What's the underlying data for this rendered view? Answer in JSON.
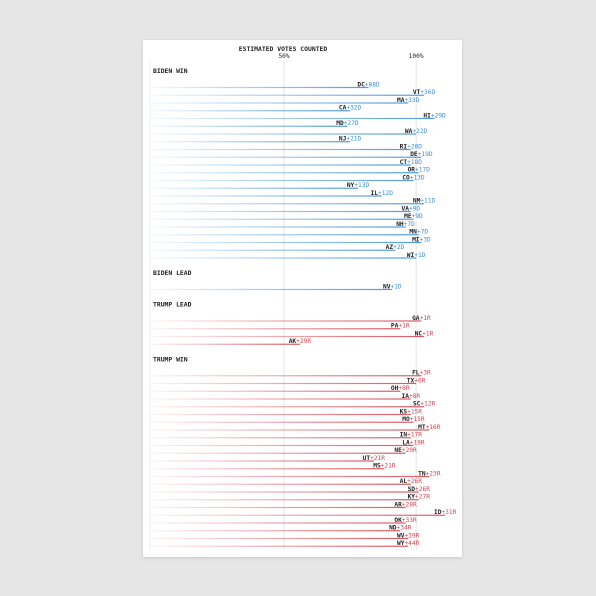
{
  "chart_data": {
    "type": "lollipop",
    "title": "ESTIMATED VOTES COUNTED",
    "xlim": [
      0,
      117
    ],
    "xticks": [
      {
        "value": 50,
        "label": "50%"
      },
      {
        "value": 100,
        "label": "100%"
      }
    ],
    "grid": true,
    "groups": [
      {
        "name": "BIDEN WIN",
        "color": "#3a8fdc",
        "states": [
          {
            "code": "DC",
            "margin": "+88D",
            "counted": 82
          },
          {
            "code": "VT",
            "margin": "+36D",
            "counted": 103
          },
          {
            "code": "MA",
            "margin": "+33D",
            "counted": 97
          },
          {
            "code": "CA",
            "margin": "+32D",
            "counted": 75
          },
          {
            "code": "HI",
            "margin": "+29D",
            "counted": 107
          },
          {
            "code": "MD",
            "margin": "+27D",
            "counted": 74
          },
          {
            "code": "WA",
            "margin": "+22D",
            "counted": 100
          },
          {
            "code": "NJ",
            "margin": "+21D",
            "counted": 75
          },
          {
            "code": "RI",
            "margin": "+20D",
            "counted": 98
          },
          {
            "code": "DE",
            "margin": "+19D",
            "counted": 102
          },
          {
            "code": "CT",
            "margin": "+18D",
            "counted": 98
          },
          {
            "code": "OR",
            "margin": "+17D",
            "counted": 101
          },
          {
            "code": "CO",
            "margin": "+13D",
            "counted": 99
          },
          {
            "code": "NY",
            "margin": "+13D",
            "counted": 78
          },
          {
            "code": "IL",
            "margin": "+12D",
            "counted": 87
          },
          {
            "code": "NM",
            "margin": "+11D",
            "counted": 103
          },
          {
            "code": "VA",
            "margin": "+9D",
            "counted": 98
          },
          {
            "code": "ME",
            "margin": "+9D",
            "counted": 99
          },
          {
            "code": "NH",
            "margin": "+7D",
            "counted": 96
          },
          {
            "code": "MN",
            "margin": "+7D",
            "counted": 101
          },
          {
            "code": "MI",
            "margin": "+3D",
            "counted": 102
          },
          {
            "code": "AZ",
            "margin": "+2D",
            "counted": 92
          },
          {
            "code": "WI",
            "margin": "+1D",
            "counted": 100
          }
        ]
      },
      {
        "name": "BIDEN LEAD",
        "color": "#3a8fdc",
        "states": [
          {
            "code": "NV",
            "margin": "+1D",
            "counted": 91
          }
        ]
      },
      {
        "name": "TRUMP LEAD",
        "color": "#d8434f",
        "states": [
          {
            "code": "GA",
            "margin": "+1R",
            "counted": 102
          },
          {
            "code": "PA",
            "margin": "+1R",
            "counted": 94
          },
          {
            "code": "NC",
            "margin": "+1R",
            "counted": 103
          },
          {
            "code": "AK",
            "margin": "+29R",
            "counted": 56
          }
        ]
      },
      {
        "name": "TRUMP WIN",
        "color": "#d8434f",
        "states": [
          {
            "code": "FL",
            "margin": "+3R",
            "counted": 102
          },
          {
            "code": "TX",
            "margin": "+6R",
            "counted": 100
          },
          {
            "code": "OH",
            "margin": "+8R",
            "counted": 94
          },
          {
            "code": "IA",
            "margin": "+8R",
            "counted": 98
          },
          {
            "code": "SC",
            "margin": "+12R",
            "counted": 103
          },
          {
            "code": "KS",
            "margin": "+15R",
            "counted": 98
          },
          {
            "code": "MO",
            "margin": "+15R",
            "counted": 99
          },
          {
            "code": "MT",
            "margin": "+16R",
            "counted": 105
          },
          {
            "code": "IN",
            "margin": "+17R",
            "counted": 98
          },
          {
            "code": "LA",
            "margin": "+19R",
            "counted": 99
          },
          {
            "code": "NE",
            "margin": "+20R",
            "counted": 96
          },
          {
            "code": "UT",
            "margin": "+21R",
            "counted": 84
          },
          {
            "code": "MS",
            "margin": "+21R",
            "counted": 88
          },
          {
            "code": "TN",
            "margin": "+23R",
            "counted": 105
          },
          {
            "code": "AL",
            "margin": "+26R",
            "counted": 98
          },
          {
            "code": "SD",
            "margin": "+26R",
            "counted": 101
          },
          {
            "code": "KY",
            "margin": "+27R",
            "counted": 101
          },
          {
            "code": "AR",
            "margin": "+28R",
            "counted": 96
          },
          {
            "code": "ID",
            "margin": "+31R",
            "counted": 111
          },
          {
            "code": "OK",
            "margin": "+33R",
            "counted": 96
          },
          {
            "code": "ND",
            "margin": "+34R",
            "counted": 94
          },
          {
            "code": "WV",
            "margin": "+39R",
            "counted": 97
          },
          {
            "code": "WY",
            "margin": "+44R",
            "counted": 97
          }
        ]
      }
    ]
  }
}
